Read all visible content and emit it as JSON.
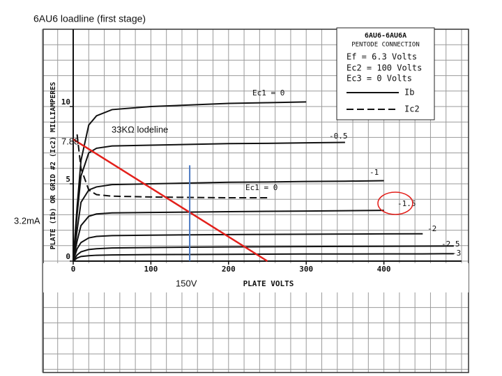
{
  "chart_data": {
    "type": "line",
    "title": "6AU6 loadline (first stage)",
    "x_label": "PLATE VOLTS",
    "y_label": "PLATE (Ib) OR GRID #2 (Ic2) MILLIAMPERES",
    "xlim": [
      0,
      500
    ],
    "ylim": [
      0,
      15
    ],
    "xticks": [
      0,
      100,
      200,
      300,
      400
    ],
    "yticks": [
      0,
      5,
      10
    ],
    "grid": true,
    "x": [
      0,
      5,
      10,
      20,
      30,
      50,
      100,
      150,
      200,
      250,
      300,
      350,
      400,
      450,
      490
    ],
    "series": [
      {
        "name": "Ec1 = 0",
        "color": "#111111",
        "dash": false,
        "values": [
          0,
          3.5,
          6.5,
          8.8,
          9.4,
          9.8,
          10.0,
          10.1,
          10.2,
          10.25,
          10.3,
          null,
          null,
          null,
          null
        ]
      },
      {
        "name": "-0.5",
        "color": "#111111",
        "dash": false,
        "values": [
          0,
          3,
          5.5,
          7,
          7.3,
          7.45,
          7.5,
          7.55,
          7.6,
          7.62,
          7.65,
          7.68,
          null,
          null,
          null
        ]
      },
      {
        "name": "-1",
        "color": "#111111",
        "dash": false,
        "values": [
          0,
          2,
          3.8,
          4.6,
          4.8,
          4.95,
          5.0,
          5.05,
          5.1,
          5.12,
          5.15,
          5.17,
          5.2,
          null,
          null
        ]
      },
      {
        "name": "-1.5",
        "color": "#111111",
        "dash": false,
        "values": [
          0,
          1.3,
          2.3,
          2.9,
          3.05,
          3.12,
          3.15,
          3.17,
          3.2,
          3.22,
          3.24,
          3.26,
          3.28,
          null,
          null
        ]
      },
      {
        "name": "-2",
        "color": "#111111",
        "dash": false,
        "values": [
          0,
          0.8,
          1.2,
          1.5,
          1.6,
          1.65,
          1.68,
          1.7,
          1.72,
          1.73,
          1.74,
          1.75,
          1.76,
          1.77,
          null
        ]
      },
      {
        "name": "-2.5",
        "color": "#111111",
        "dash": false,
        "values": [
          0,
          0.4,
          0.6,
          0.75,
          0.8,
          0.85,
          0.88,
          0.9,
          0.92,
          0.93,
          0.94,
          0.95,
          0.96,
          0.97,
          0.98
        ]
      },
      {
        "name": "-3",
        "color": "#111111",
        "dash": false,
        "values": [
          0,
          0.2,
          0.3,
          0.35,
          0.38,
          0.4,
          0.42,
          0.43,
          0.44,
          0.45,
          0.46,
          0.46,
          0.47,
          0.47,
          0.48
        ]
      },
      {
        "name": "Ec1 = 0",
        "color": "#111111",
        "dash": true,
        "values": [
          null,
          8.2,
          6,
          4.6,
          4.3,
          4.2,
          4.15,
          4.12,
          4.1,
          4.1,
          null,
          null,
          null,
          null,
          null
        ]
      }
    ],
    "legend": {
      "title": "6AU6-6AU6A",
      "subtitle": "PENTODE CONNECTION",
      "conditions": [
        "Ef = 6.3 Volts",
        "Ec2 = 100 Volts",
        "Ec3 = 0 Volts"
      ],
      "solid": "Ib",
      "dashed": "Ic2"
    },
    "loadline": {
      "name": "33KΩ lodeline",
      "color": "#e3201b",
      "x": [
        0,
        250
      ],
      "values": [
        7.88,
        0
      ],
      "value_labels": [
        "7.88",
        null
      ]
    },
    "operating_point": {
      "x": 150,
      "x_label": "150V",
      "value": 3.2,
      "value_label": "3.2mA",
      "span": [
        0,
        6.2
      ],
      "color": "#4a78c2"
    }
  }
}
